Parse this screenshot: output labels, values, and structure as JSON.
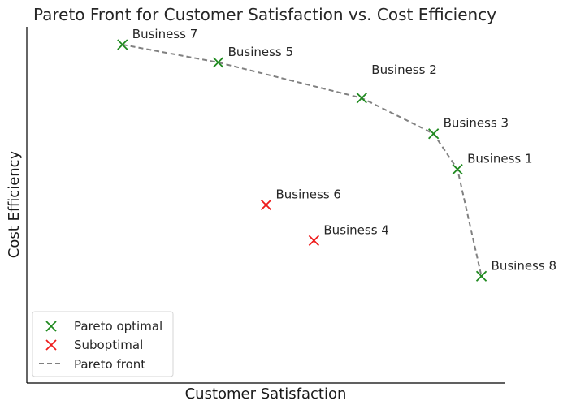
{
  "chart_data": {
    "type": "scatter",
    "title": "Pareto Front for Customer Satisfaction vs. Cost Efficiency",
    "xlabel": "Customer Satisfaction",
    "ylabel": "Cost Efficiency",
    "xlim": [
      0.5,
      10.5
    ],
    "ylim": [
      0,
      10
    ],
    "grid": false,
    "legend_position": "lower-left",
    "colors": {
      "pareto": "#1f8a1f",
      "suboptimal": "#ee1c1c",
      "front": "#808080"
    },
    "points": [
      {
        "label": "Business 7",
        "x": 2.5,
        "y": 9.5,
        "group": "pareto"
      },
      {
        "label": "Business 5",
        "x": 4.5,
        "y": 9.0,
        "group": "pareto"
      },
      {
        "label": "Business 2",
        "x": 7.5,
        "y": 8.0,
        "group": "pareto"
      },
      {
        "label": "Business 3",
        "x": 9.0,
        "y": 7.0,
        "group": "pareto"
      },
      {
        "label": "Business 1",
        "x": 9.5,
        "y": 6.0,
        "group": "pareto"
      },
      {
        "label": "Business 6",
        "x": 5.5,
        "y": 5.0,
        "group": "suboptimal"
      },
      {
        "label": "Business 4",
        "x": 6.5,
        "y": 4.0,
        "group": "suboptimal"
      },
      {
        "label": "Business 8",
        "x": 10.0,
        "y": 3.0,
        "group": "pareto"
      }
    ],
    "pareto_front_order": [
      "Business 7",
      "Business 5",
      "Business 2",
      "Business 3",
      "Business 1",
      "Business 8"
    ],
    "legend": {
      "pareto_optimal": "Pareto optimal",
      "suboptimal": "Suboptimal",
      "pareto_front": "Pareto front"
    }
  }
}
